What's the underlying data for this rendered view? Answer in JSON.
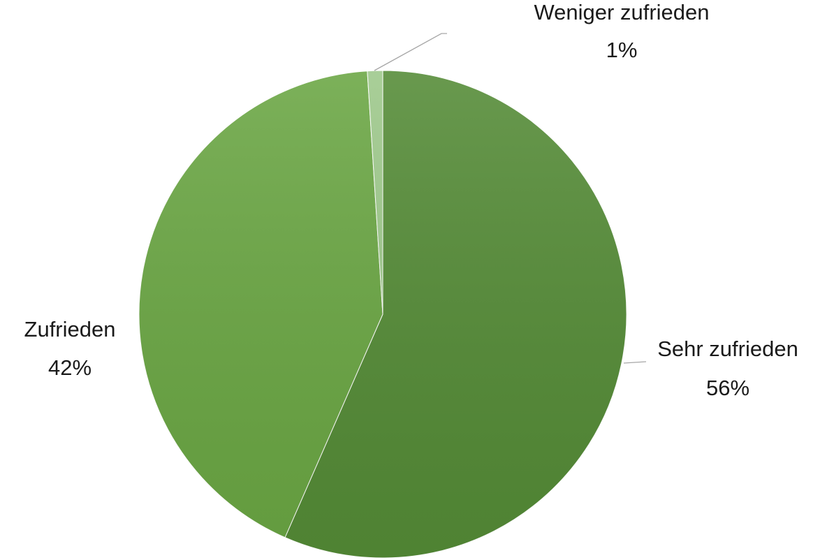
{
  "chart_data": {
    "type": "pie",
    "categories": [
      "Sehr zufrieden",
      "Zufrieden",
      "Weniger zufrieden"
    ],
    "values": [
      56,
      42,
      1
    ],
    "value_labels": [
      "56%",
      "42%",
      "1%"
    ],
    "colors": [
      "#548b36",
      "#6aa643",
      "#9dc88a"
    ]
  }
}
